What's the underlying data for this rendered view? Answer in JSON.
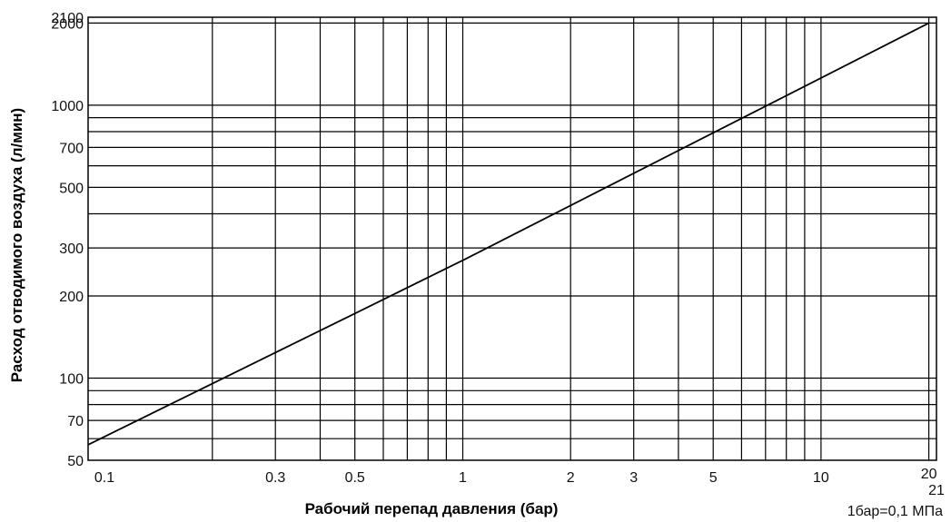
{
  "chart_data": {
    "type": "line",
    "title": "",
    "xlabel": "Рабочий перепад давления (бар)",
    "ylabel": "Расход отводимого воздуха (л/мин)",
    "x_scale": "log",
    "y_scale": "log",
    "xlim": [
      0.09,
      21
    ],
    "ylim": [
      50,
      2100
    ],
    "x_tick_labels": [
      {
        "value": 0.1,
        "label": "0.1"
      },
      {
        "value": 0.3,
        "label": "0.3"
      },
      {
        "value": 0.5,
        "label": "0.5"
      },
      {
        "value": 1,
        "label": "1"
      },
      {
        "value": 2,
        "label": "2"
      },
      {
        "value": 3,
        "label": "3"
      },
      {
        "value": 5,
        "label": "5"
      },
      {
        "value": 10,
        "label": "10"
      },
      {
        "value": 20,
        "label": "20"
      },
      {
        "value": 21,
        "label": "21"
      }
    ],
    "y_tick_labels": [
      {
        "value": 50,
        "label": "50"
      },
      {
        "value": 70,
        "label": "70"
      },
      {
        "value": 100,
        "label": "100"
      },
      {
        "value": 200,
        "label": "200"
      },
      {
        "value": 300,
        "label": "300"
      },
      {
        "value": 500,
        "label": "500"
      },
      {
        "value": 700,
        "label": "700"
      },
      {
        "value": 1000,
        "label": "1000"
      },
      {
        "value": 2000,
        "label": "2000"
      },
      {
        "value": 2100,
        "label": "2100"
      }
    ],
    "x_gridlines": [
      0.2,
      0.3,
      0.4,
      0.5,
      0.6,
      0.7,
      0.8,
      0.9,
      1,
      2,
      3,
      4,
      5,
      6,
      7,
      8,
      9,
      10,
      20
    ],
    "y_gridlines": [
      60,
      70,
      80,
      90,
      100,
      200,
      300,
      400,
      500,
      600,
      700,
      800,
      900,
      1000,
      2000
    ],
    "grid": true,
    "series": [
      {
        "x": [
          0.09,
          1,
          20
        ],
        "y": [
          57,
          270,
          2000
        ]
      }
    ],
    "annotation": "1бар=0,1 МПа"
  }
}
